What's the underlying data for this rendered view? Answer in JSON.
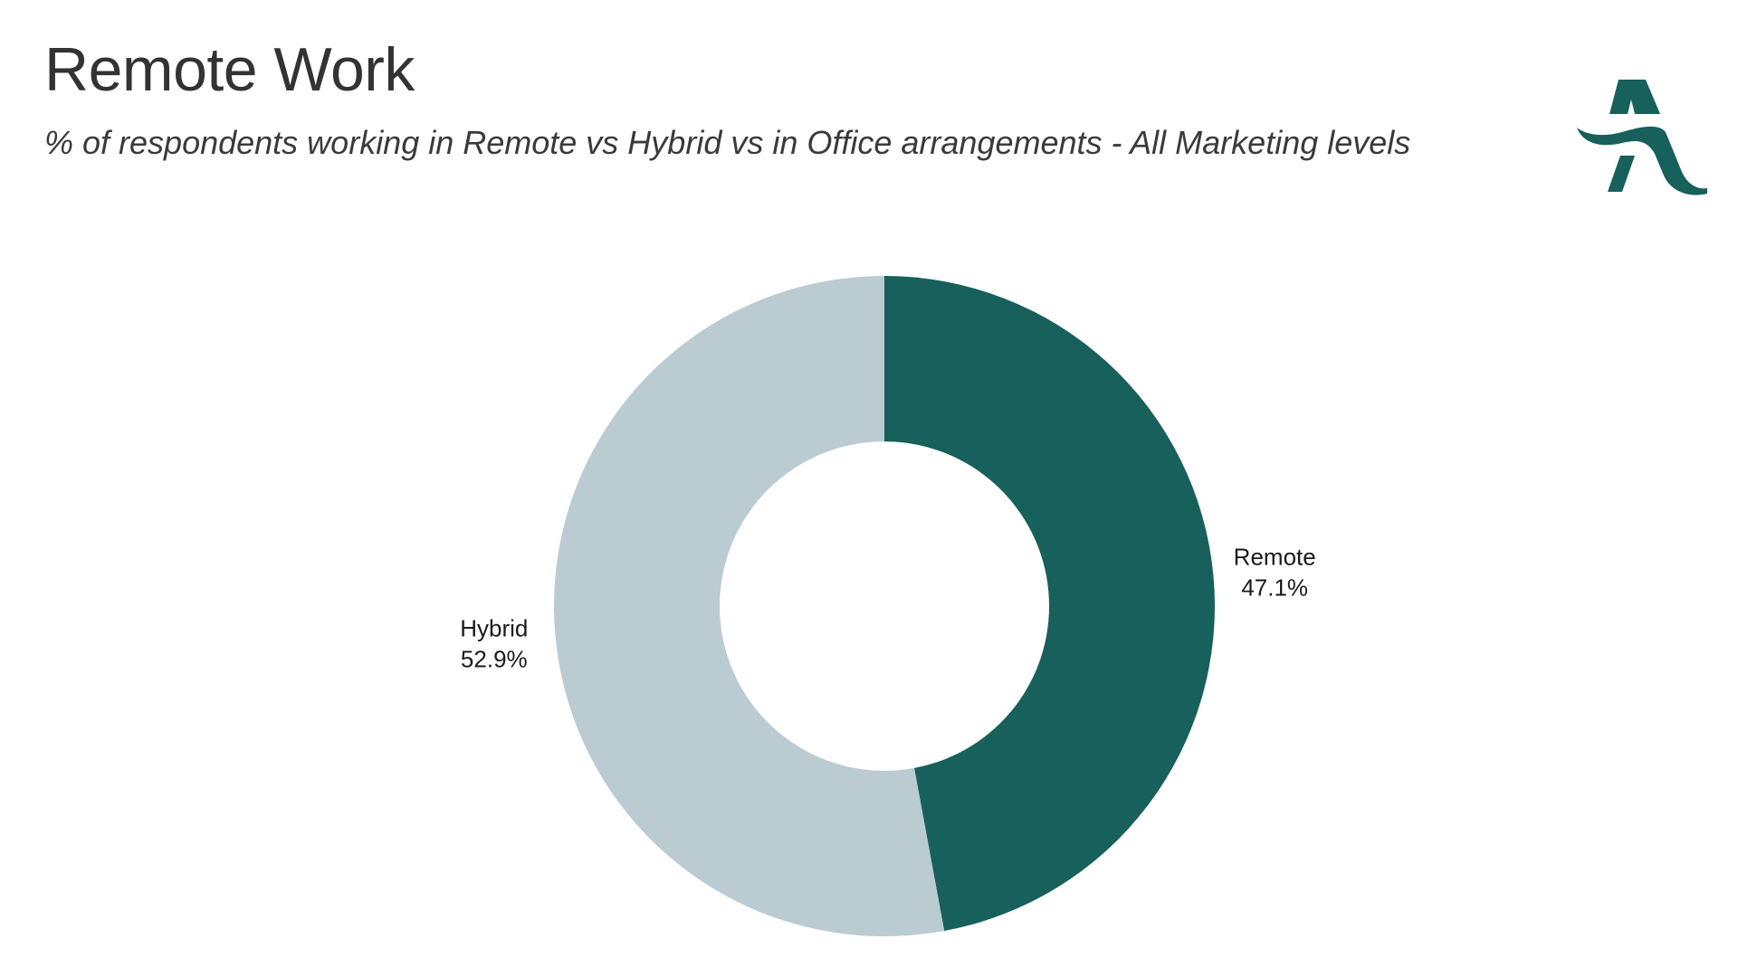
{
  "header": {
    "title": "Remote Work",
    "subtitle": "% of respondents working in Remote vs Hybrid vs in Office arrangements - All Marketing levels"
  },
  "logo": {
    "icon": "stylized-letter-a-logo",
    "color": "#17605c"
  },
  "chart_data": {
    "type": "pie",
    "variant": "donut",
    "title": "Remote Work",
    "subtitle": "% of respondents working in Remote vs Hybrid vs in Office arrangements - All Marketing levels",
    "start_angle_deg": 0,
    "direction": "clockwise",
    "slices": [
      {
        "label": "Remote",
        "value": 47.1,
        "value_label": "47.1%",
        "color": "#17605c"
      },
      {
        "label": "Hybrid",
        "value": 52.9,
        "value_label": "52.9%",
        "color": "#bbcbd2"
      }
    ]
  }
}
